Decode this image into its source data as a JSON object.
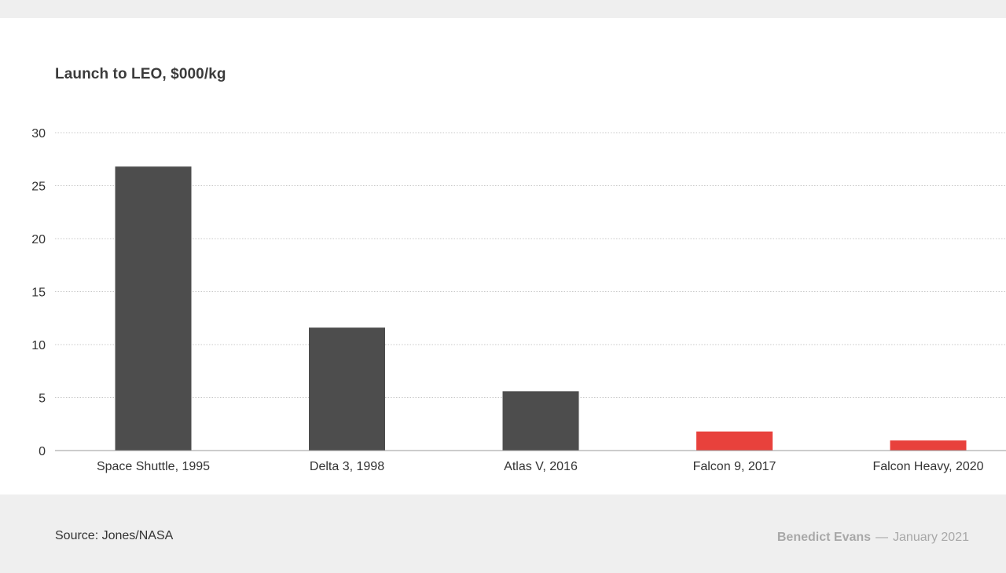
{
  "chart_data": {
    "type": "bar",
    "title": "Launch to LEO, $000/kg",
    "categories": [
      "Space Shuttle, 1995",
      "Delta 3, 1998",
      "Atlas V, 2016",
      "Falcon 9, 2017",
      "Falcon Heavy, 2020"
    ],
    "values": [
      26.8,
      11.6,
      5.6,
      1.8,
      0.95
    ],
    "bar_colors": [
      "#4d4d4d",
      "#4d4d4d",
      "#4d4d4d",
      "#e8413c",
      "#e8413c"
    ],
    "ylim": [
      0,
      30
    ],
    "yticks": [
      0,
      5,
      10,
      15,
      20,
      25,
      30
    ],
    "grid": true,
    "xlabel": "",
    "ylabel": ""
  },
  "footer": {
    "source": "Source: Jones/NASA",
    "author": "Benedict Evans",
    "separator": "—",
    "date": "January 2021"
  }
}
